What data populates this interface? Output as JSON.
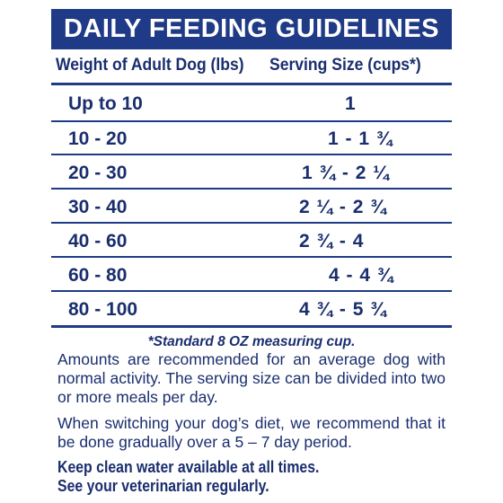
{
  "title": "DAILY FEEDING GUIDELINES",
  "headers": {
    "weight": "Weight of Adult Dog (lbs)",
    "serving": "Serving Size (cups*)"
  },
  "rows": [
    {
      "weight": "Up to 10",
      "serving": "1"
    },
    {
      "weight": "10 - 20",
      "serving": "1 - 1 ¾"
    },
    {
      "weight": "20 - 30",
      "serving": "1 ¾ - 2 ¼"
    },
    {
      "weight": "30 - 40",
      "serving": "2 ¼ - 2 ¾"
    },
    {
      "weight": "40 - 60",
      "serving": "2 ¾ - 4"
    },
    {
      "weight": "60 - 80",
      "serving": "4 - 4 ¾"
    },
    {
      "weight": "80 - 100",
      "serving": "4 ¾ - 5 ¾"
    }
  ],
  "footnote": "*Standard 8 OZ measuring cup.",
  "paragraphs": [
    "Amounts are recommended for an average dog with normal activity. The serving size can be divided into two or more meals per day.",
    "When switching your dog’s diet, we recommend that it be done gradually over a 5 – 7 day period."
  ],
  "notes": [
    "Keep clean water available at all times.",
    "See your veterinarian regularly."
  ],
  "colors": {
    "brand_navy": "#1f3a86",
    "text_navy": "#1a2e6e",
    "background": "#ffffff"
  }
}
